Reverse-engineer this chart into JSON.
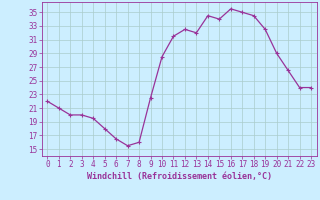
{
  "hours": [
    0,
    1,
    2,
    3,
    4,
    5,
    6,
    7,
    8,
    9,
    10,
    11,
    12,
    13,
    14,
    15,
    16,
    17,
    18,
    19,
    20,
    21,
    22,
    23
  ],
  "values": [
    22.0,
    21.0,
    20.0,
    20.0,
    19.5,
    18.0,
    16.5,
    15.5,
    16.0,
    22.5,
    28.5,
    31.5,
    32.5,
    32.0,
    34.5,
    34.0,
    35.5,
    35.0,
    34.5,
    32.5,
    29.0,
    26.5,
    24.0,
    24.0
  ],
  "line_color": "#993399",
  "marker_color": "#993399",
  "bg_color": "#cceeff",
  "grid_color": "#aacccc",
  "xlabel": "Windchill (Refroidissement éolien,°C)",
  "xlim": [
    -0.5,
    23.5
  ],
  "ylim": [
    14.0,
    36.5
  ],
  "yticks": [
    15,
    17,
    19,
    21,
    23,
    25,
    27,
    29,
    31,
    33,
    35
  ],
  "xticks": [
    0,
    1,
    2,
    3,
    4,
    5,
    6,
    7,
    8,
    9,
    10,
    11,
    12,
    13,
    14,
    15,
    16,
    17,
    18,
    19,
    20,
    21,
    22,
    23
  ],
  "xlabel_fontsize": 6.0,
  "tick_fontsize": 5.5,
  "line_width": 0.9,
  "marker_size": 3.0,
  "marker_ew": 0.8
}
